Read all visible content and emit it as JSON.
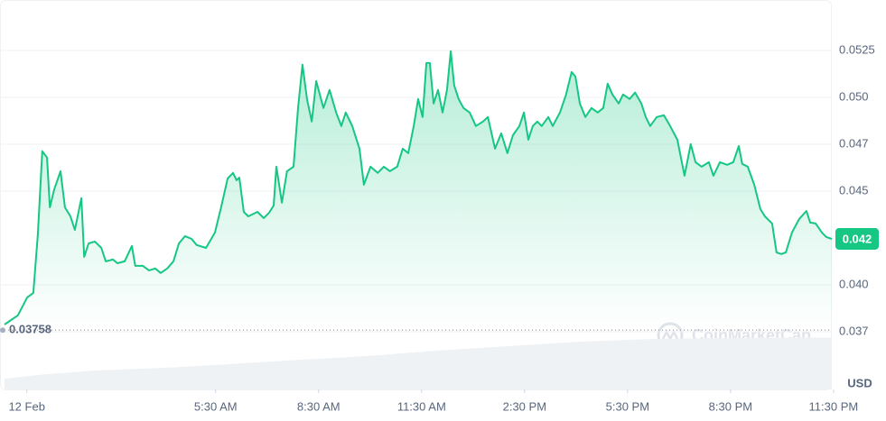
{
  "chart_data": {
    "type": "line",
    "color": "#16c784",
    "x": [
      -0.65,
      -0.26,
      0.01,
      0.19,
      0.32,
      0.45,
      0.59,
      0.67,
      0.8,
      0.98,
      1.11,
      1.27,
      1.4,
      1.59,
      1.67,
      1.8,
      1.98,
      2.17,
      2.3,
      2.51,
      2.64,
      2.85,
      3.06,
      3.16,
      3.38,
      3.56,
      3.74,
      3.9,
      4.09,
      4.27,
      4.43,
      4.61,
      4.8,
      4.95,
      5.22,
      5.48,
      5.66,
      5.85,
      6.01,
      6.11,
      6.19,
      6.32,
      6.45,
      6.72,
      6.9,
      7.06,
      7.19,
      7.27,
      7.43,
      7.58,
      7.77,
      7.9,
      8.03,
      8.16,
      8.3,
      8.43,
      8.64,
      8.82,
      9.01,
      9.16,
      9.29,
      9.48,
      9.69,
      9.82,
      10.01,
      10.22,
      10.4,
      10.58,
      10.79,
      10.95,
      11.11,
      11.27,
      11.4,
      11.53,
      11.64,
      11.74,
      11.85,
      11.98,
      12.11,
      12.24,
      12.35,
      12.45,
      12.58,
      12.72,
      12.9,
      13.08,
      13.29,
      13.43,
      13.64,
      13.82,
      14.0,
      14.16,
      14.35,
      14.48,
      14.61,
      14.74,
      14.87,
      15.0,
      15.19,
      15.32,
      15.53,
      15.71,
      15.87,
      15.98,
      16.11,
      16.27,
      16.45,
      16.63,
      16.79,
      16.92,
      17.06,
      17.24,
      17.37,
      17.56,
      17.72,
      17.9,
      18.03,
      18.16,
      18.35,
      18.56,
      18.74,
      18.95,
      19.16,
      19.34,
      19.48,
      19.66,
      19.87,
      20.0,
      20.19,
      20.4,
      20.58,
      20.74,
      20.84,
      21.0,
      21.19,
      21.37,
      21.5,
      21.71,
      21.84,
      21.98,
      22.11,
      22.29,
      22.5,
      22.71,
      22.82,
      22.98,
      23.16,
      23.29,
      23.45
    ],
    "values": [
      0.03788,
      0.03837,
      0.03933,
      0.03957,
      0.04269,
      0.04712,
      0.04678,
      0.04413,
      0.0451,
      0.04606,
      0.04413,
      0.04365,
      0.04293,
      0.04462,
      0.04149,
      0.04221,
      0.04231,
      0.04197,
      0.04125,
      0.04135,
      0.04115,
      0.04125,
      0.04207,
      0.04101,
      0.04101,
      0.04077,
      0.04087,
      0.04063,
      0.04087,
      0.04125,
      0.04221,
      0.0426,
      0.04245,
      0.04212,
      0.04197,
      0.04279,
      0.04413,
      0.04568,
      0.04597,
      0.04558,
      0.04572,
      0.04389,
      0.04365,
      0.04389,
      0.04356,
      0.04385,
      0.04423,
      0.0463,
      0.04438,
      0.04606,
      0.0463,
      0.04943,
      0.05174,
      0.04991,
      0.04871,
      0.05087,
      0.04943,
      0.05039,
      0.04919,
      0.04847,
      0.04919,
      0.04847,
      0.04726,
      0.04534,
      0.0463,
      0.04597,
      0.0463,
      0.04606,
      0.0463,
      0.04726,
      0.04702,
      0.04847,
      0.04991,
      0.04895,
      0.05183,
      0.05183,
      0.04967,
      0.05039,
      0.04919,
      0.05039,
      0.05246,
      0.05063,
      0.04991,
      0.04943,
      0.04919,
      0.04847,
      0.04871,
      0.04895,
      0.04726,
      0.04808,
      0.04702,
      0.04798,
      0.04847,
      0.04919,
      0.04774,
      0.04847,
      0.04871,
      0.04847,
      0.04895,
      0.04847,
      0.04919,
      0.05015,
      0.05135,
      0.05111,
      0.04967,
      0.04895,
      0.04943,
      0.04919,
      0.04943,
      0.05073,
      0.05015,
      0.04967,
      0.05015,
      0.04991,
      0.05025,
      0.04967,
      0.04895,
      0.04847,
      0.04895,
      0.04904,
      0.04847,
      0.04774,
      0.04582,
      0.0475,
      0.04654,
      0.0463,
      0.04654,
      0.04582,
      0.04654,
      0.0464,
      0.04654,
      0.0474,
      0.04645,
      0.0463,
      0.04534,
      0.04404,
      0.04365,
      0.04327,
      0.04173,
      0.04164,
      0.04173,
      0.04279,
      0.04351,
      0.04394,
      0.04332,
      0.04327,
      0.04279,
      0.04255,
      0.04245
    ],
    "xlim": [
      -0.65,
      23.45
    ],
    "xticks": [
      {
        "value": 0,
        "label": "12 Feb"
      },
      {
        "value": 5.5,
        "label": "5:30 AM"
      },
      {
        "value": 8.5,
        "label": "8:30 AM"
      },
      {
        "value": 11.5,
        "label": "11:30 AM"
      },
      {
        "value": 14.5,
        "label": "2:30 PM"
      },
      {
        "value": 17.5,
        "label": "5:30 PM"
      },
      {
        "value": 20.5,
        "label": "8:30 PM"
      },
      {
        "value": 23.5,
        "label": "11:30 PM"
      }
    ],
    "ylim": [
      0.03442,
      0.05519
    ],
    "yticks": [
      {
        "value": 0.0375,
        "label": "0.037"
      },
      {
        "value": 0.04,
        "label": "0.040"
      },
      0.045,
      {
        "value": 0.0475,
        "label": "0.047"
      },
      {
        "value": 0.05,
        "label": "0.050"
      },
      0.0525
    ],
    "grid": true,
    "open_price": 0.03758,
    "last_price": {
      "value": 0.04245,
      "label": "0.042"
    },
    "currency": "USD",
    "watermark": "CoinMarketCap",
    "volume": {
      "color": "#eff2f5",
      "vlim": [
        0,
        100
      ],
      "x": [
        -0.65,
        0.5,
        2,
        4,
        6,
        8,
        10,
        12,
        14,
        16,
        18,
        20,
        23.45
      ],
      "values": [
        20,
        28,
        35,
        40,
        47,
        55,
        62,
        72,
        80,
        88,
        93,
        95,
        96
      ]
    }
  }
}
